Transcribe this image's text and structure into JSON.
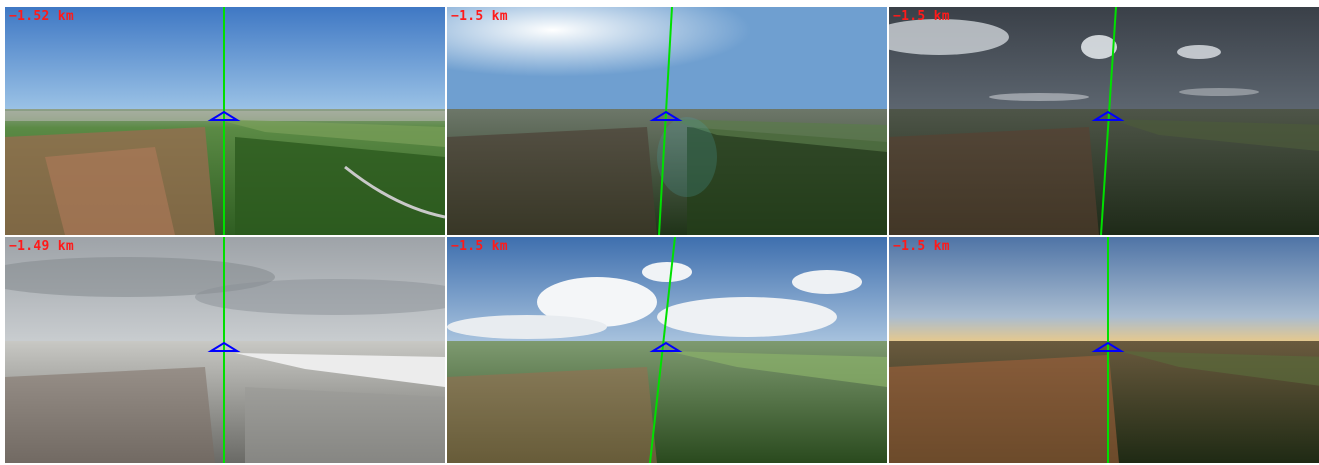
{
  "tiles": [
    {
      "distance_label": "−1.52 km",
      "scene": "clear-midday",
      "line_color": "#00e000",
      "marker_color": "#0000ff"
    },
    {
      "distance_label": "−1.5 km",
      "scene": "sunny-haze",
      "line_color": "#00e000",
      "marker_color": "#0000ff"
    },
    {
      "distance_label": "−1.5 km",
      "scene": "dark-cloudy",
      "line_color": "#00e000",
      "marker_color": "#0000ff"
    },
    {
      "distance_label": "−1.49 km",
      "scene": "overcast-snow",
      "line_color": "#00e000",
      "marker_color": "#0000ff"
    },
    {
      "distance_label": "−1.5 km",
      "scene": "cumulus-day",
      "line_color": "#00e000",
      "marker_color": "#0000ff"
    },
    {
      "distance_label": "−1.5 km",
      "scene": "golden-dusk",
      "line_color": "#00e000",
      "marker_color": "#0000ff"
    }
  ]
}
